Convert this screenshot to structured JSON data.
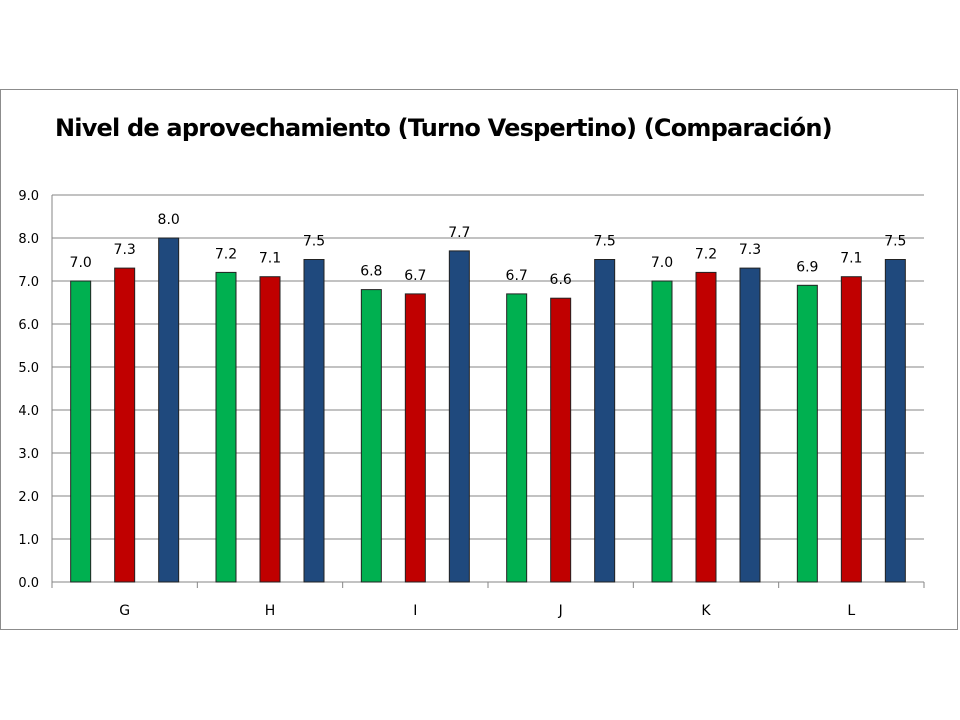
{
  "chart_data": {
    "type": "bar",
    "title": "Nivel de aprovechamiento (Turno Vespertino) (Comparación)",
    "xlabel": "",
    "ylabel": "",
    "categories": [
      "G",
      "H",
      "I",
      "J",
      "K",
      "L"
    ],
    "series": [
      {
        "values": [
          7.0,
          7.2,
          6.8,
          6.7,
          7.0,
          6.9
        ],
        "color": "#00b050"
      },
      {
        "values": [
          7.3,
          7.1,
          6.7,
          6.6,
          7.2,
          7.1
        ],
        "color": "#c00000"
      },
      {
        "values": [
          8.0,
          7.5,
          7.7,
          7.5,
          7.3,
          7.5
        ],
        "color": "#1f497d"
      }
    ],
    "ylim": [
      0,
      9
    ],
    "y_ticks": [
      "0.0",
      "1.0",
      "2.0",
      "3.0",
      "4.0",
      "5.0",
      "6.0",
      "7.0",
      "8.0",
      "9.0"
    ],
    "data_labels": true,
    "grid": true,
    "legend": "none"
  }
}
